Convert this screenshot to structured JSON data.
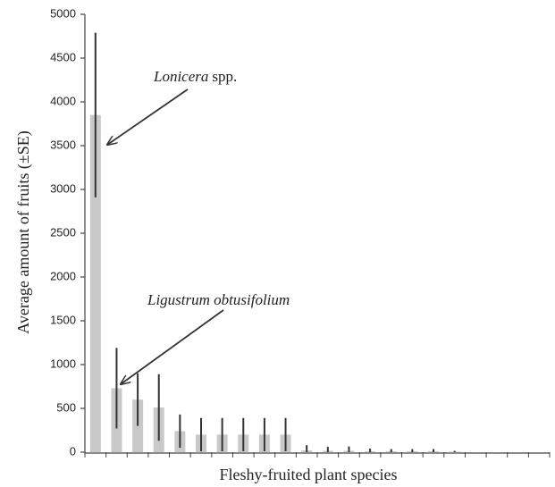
{
  "chart_data": {
    "type": "bar",
    "y_label": "Average amount of fruits (±SE)",
    "x_label": "Fleshy-fruited plant species",
    "annotations": [
      {
        "parts": [
          "Lonicera",
          "spp."
        ]
      },
      {
        "parts": [
          "Ligustrum obtusifolium"
        ]
      }
    ],
    "categories": [
      null,
      null,
      null,
      null,
      null,
      null,
      null,
      null,
      null,
      null,
      null,
      null,
      null,
      null,
      null,
      null,
      null,
      null,
      null,
      null,
      null,
      null
    ],
    "values": [
      3850,
      730,
      600,
      510,
      240,
      200,
      200,
      200,
      200,
      200,
      20,
      15,
      15,
      10,
      10,
      10,
      10,
      5,
      0,
      0,
      0,
      0
    ],
    "errors": [
      940,
      460,
      300,
      380,
      190,
      190,
      190,
      190,
      190,
      190,
      60,
      45,
      50,
      30,
      25,
      25,
      25,
      10,
      0,
      0,
      0,
      0
    ],
    "color": "#c9c9c9",
    "error_color": "#333333",
    "ylim": [
      0,
      5000
    ],
    "yticks": [
      0,
      500,
      1000,
      1500,
      2000,
      2500,
      3000,
      3500,
      4000,
      4500,
      5000
    ]
  }
}
